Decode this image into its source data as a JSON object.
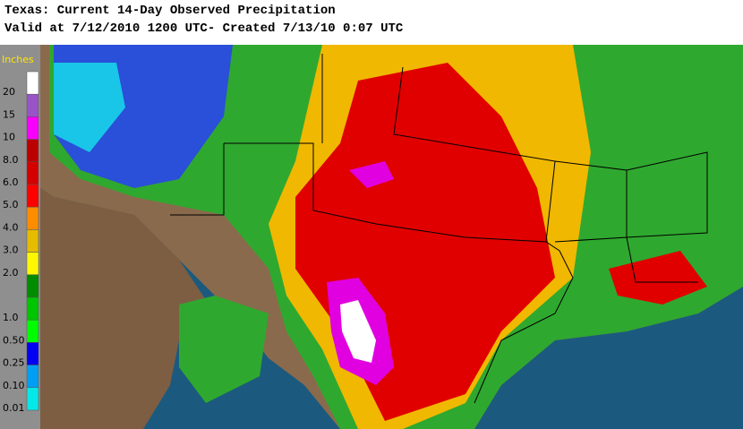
{
  "header": {
    "title": "Texas: Current 14-Day Observed Precipitation",
    "subtitle": "Valid at 7/12/2010 1200 UTC- Created 7/13/10 0:07 UTC"
  },
  "legend": {
    "unit": "Inches",
    "colors": [
      "#ffffff",
      "#9854c6",
      "#f800fd",
      "#bc0000",
      "#d40000",
      "#fd0000",
      "#fd8c00",
      "#e5bc00",
      "#fdf802",
      "#008c00",
      "#01c501",
      "#00fc00",
      "#0300f4",
      "#019ff4",
      "#04e9e7"
    ],
    "labels": [
      "20",
      "15",
      "10",
      "8.0",
      "6.0",
      "5.0",
      "4.0",
      "3.0",
      "2.0",
      "1.0",
      "0.50",
      "0.25",
      "0.10",
      "0.01"
    ]
  }
}
